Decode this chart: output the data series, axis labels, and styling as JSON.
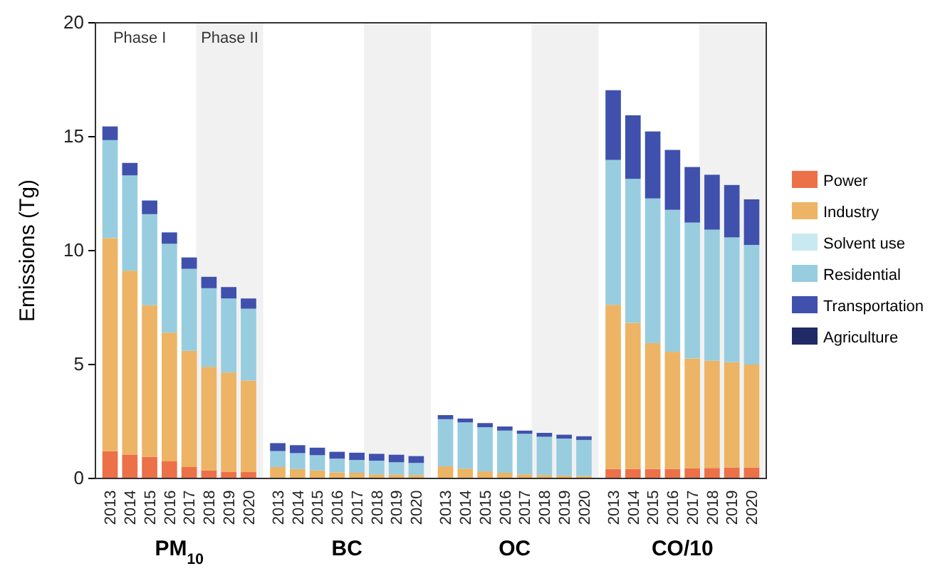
{
  "chart_data": [
    {
      "type": "bar",
      "stacked": true,
      "xlabel": "PM$_{10}$",
      "ylabel": "Emissions (Tg)",
      "categories": [
        "2013",
        "2014",
        "2015",
        "2016",
        "2017",
        "2018",
        "2019",
        "2020"
      ],
      "ylim": [
        0,
        20
      ],
      "yticks": [
        0,
        5,
        10,
        15,
        20
      ],
      "bands": [
        {
          "axis": "x",
          "from": "2018",
          "to": "2020",
          "label": "Phase II",
          "color": "#f1f1f1"
        }
      ],
      "annotations": [
        "Phase I"
      ],
      "series": [
        {
          "color": "#ec7048",
          "values": [
            1.2,
            1.05,
            0.95,
            0.75,
            0.5,
            0.35,
            0.28,
            0.28
          ]
        },
        {
          "color": "#ecb464",
          "values": [
            9.35,
            8.07,
            6.65,
            5.65,
            5.1,
            4.55,
            4.37,
            4.02
          ]
        },
        {
          "color": "#c9e9f0",
          "values": [
            0,
            0,
            0,
            0,
            0,
            0,
            0,
            0
          ]
        },
        {
          "color": "#98cde0",
          "values": [
            4.3,
            4.18,
            4.0,
            3.9,
            3.6,
            3.45,
            3.25,
            3.15
          ]
        },
        {
          "color": "#3f51ad",
          "values": [
            0.6,
            0.55,
            0.6,
            0.5,
            0.5,
            0.5,
            0.5,
            0.45
          ]
        },
        {
          "color": "#1f2a66",
          "values": [
            0,
            0,
            0,
            0,
            0,
            0,
            0,
            0
          ]
        }
      ]
    },
    {
      "type": "bar",
      "stacked": true,
      "xlabel": "BC",
      "tick_labels": "x",
      "categories": [
        "2013",
        "2014",
        "2015",
        "2016",
        "2017",
        "2018",
        "2019",
        "2020"
      ],
      "ylim": [
        0,
        20
      ],
      "bands": [
        {
          "axis": "x",
          "from": "2018",
          "to": "2020",
          "color": "#f1f1f1"
        }
      ],
      "series": [
        {
          "color": "#ecb464",
          "values": [
            0.5,
            0.41,
            0.35,
            0.27,
            0.25,
            0.18,
            0.17,
            0.15
          ]
        },
        {
          "color": "#c9e9f0",
          "values": [
            0,
            0,
            0,
            0,
            0,
            0,
            0,
            0
          ]
        },
        {
          "color": "#98cde0",
          "values": [
            0.7,
            0.7,
            0.67,
            0.6,
            0.56,
            0.6,
            0.54,
            0.53
          ]
        },
        {
          "color": "#3f51ad",
          "values": [
            0.35,
            0.35,
            0.33,
            0.3,
            0.32,
            0.3,
            0.33,
            0.3
          ]
        },
        {
          "color": "#1f2a66",
          "values": [
            0,
            0,
            0,
            0,
            0,
            0,
            0,
            0
          ]
        }
      ]
    },
    {
      "type": "bar",
      "stacked": true,
      "xlabel": "OC",
      "tick_labels": "x",
      "categories": [
        "2013",
        "2014",
        "2015",
        "2016",
        "2017",
        "2018",
        "2019",
        "2020"
      ],
      "ylim": [
        0,
        20
      ],
      "bands": [
        {
          "axis": "x",
          "from": "2018",
          "to": "2020",
          "color": "#f1f1f1"
        }
      ],
      "series": [
        {
          "color": "#ecb464",
          "values": [
            0.53,
            0.43,
            0.31,
            0.25,
            0.18,
            0.15,
            0.13,
            0.11
          ]
        },
        {
          "color": "#c9e9f0",
          "values": [
            0,
            0,
            0,
            0,
            0,
            0,
            0,
            0
          ]
        },
        {
          "color": "#98cde0",
          "values": [
            2.07,
            2.03,
            1.94,
            1.85,
            1.78,
            1.68,
            1.62,
            1.58
          ]
        },
        {
          "color": "#3f51ad",
          "values": [
            0.18,
            0.17,
            0.18,
            0.18,
            0.14,
            0.17,
            0.17,
            0.16
          ]
        },
        {
          "color": "#1f2a66",
          "values": [
            0,
            0,
            0,
            0,
            0,
            0,
            0,
            0
          ]
        }
      ]
    },
    {
      "type": "bar",
      "stacked": true,
      "xlabel": "CO/10",
      "tick_labels": "x",
      "legend": "right",
      "categories": [
        "2013",
        "2014",
        "2015",
        "2016",
        "2017",
        "2018",
        "2019",
        "2020"
      ],
      "ylim": [
        0,
        20
      ],
      "bands": [
        {
          "axis": "x",
          "from": "2018",
          "to": "2020",
          "color": "#f1f1f1"
        }
      ],
      "series": [
        {
          "name": "Power",
          "color": "#ec7048",
          "values": [
            0.42,
            0.42,
            0.42,
            0.42,
            0.44,
            0.46,
            0.48,
            0.48
          ]
        },
        {
          "name": "Industry",
          "color": "#ecb464",
          "values": [
            7.2,
            6.41,
            5.52,
            5.14,
            4.83,
            4.71,
            4.62,
            4.52
          ]
        },
        {
          "name": "Solvent use",
          "color": "#c9e9f0",
          "values": [
            0,
            0,
            0,
            0,
            0,
            0,
            0,
            0
          ]
        },
        {
          "name": "Residential",
          "color": "#98cde0",
          "values": [
            6.36,
            6.32,
            6.35,
            6.23,
            5.96,
            5.75,
            5.48,
            5.25
          ]
        },
        {
          "name": "Transportation",
          "color": "#3f51ad",
          "values": [
            3.06,
            2.79,
            2.94,
            2.63,
            2.44,
            2.41,
            2.3,
            2.0
          ]
        },
        {
          "name": "Agriculture",
          "color": "#1f2a66",
          "values": [
            0,
            0,
            0,
            0,
            0,
            0,
            0,
            0
          ]
        }
      ]
    }
  ]
}
